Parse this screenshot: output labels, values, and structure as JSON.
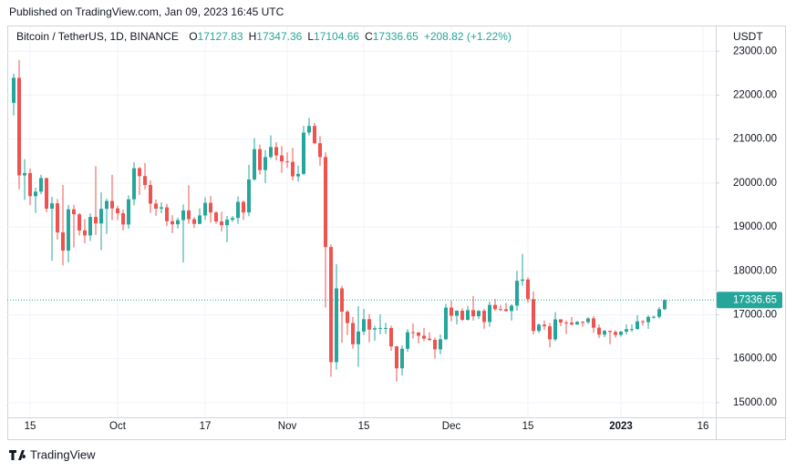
{
  "header": {
    "published": "Published on TradingView.com, Jan 09, 2023 16:45 UTC",
    "brand": "TradingView"
  },
  "chart_data": {
    "type": "candlestick",
    "title": "Bitcoin / TetherUS, 1D, BINANCE",
    "ohlc_labels": [
      "O",
      "H",
      "L",
      "C"
    ],
    "change_label": "+208.82 (+1.22%)",
    "y_axis_label": "USDT",
    "up_color": "#26a69a",
    "down_color": "#ef5350",
    "grid": true,
    "ylim": [
      14665,
      23565
    ],
    "yticks": [
      {
        "value": 15000,
        "label": "15000.00"
      },
      {
        "value": 16000,
        "label": "16000.00"
      },
      {
        "value": 17000,
        "label": "17000.00"
      },
      {
        "value": 18000,
        "label": "18000.00"
      },
      {
        "value": 19000,
        "label": "19000.00"
      },
      {
        "value": 20000,
        "label": "20000.00"
      },
      {
        "value": 21000,
        "label": "21000.00"
      },
      {
        "value": 22000,
        "label": "22000.00"
      },
      {
        "value": 23000,
        "label": "23000.00"
      }
    ],
    "categories": [
      null,
      null,
      null,
      "15",
      null,
      null,
      null,
      null,
      null,
      null,
      null,
      null,
      null,
      null,
      null,
      null,
      null,
      null,
      null,
      "Oct",
      null,
      null,
      null,
      null,
      null,
      null,
      null,
      null,
      null,
      null,
      null,
      null,
      null,
      null,
      null,
      "17",
      null,
      null,
      null,
      null,
      null,
      null,
      null,
      null,
      null,
      null,
      null,
      null,
      null,
      null,
      "Nov",
      null,
      null,
      null,
      null,
      null,
      null,
      null,
      null,
      null,
      null,
      null,
      null,
      null,
      "15",
      null,
      null,
      null,
      null,
      null,
      null,
      null,
      null,
      null,
      null,
      null,
      null,
      null,
      null,
      null,
      "Dec",
      null,
      null,
      null,
      null,
      null,
      null,
      null,
      null,
      null,
      null,
      null,
      null,
      null,
      "15",
      null,
      null,
      null,
      null,
      null,
      null,
      null,
      null,
      null,
      null,
      null,
      null,
      null,
      null,
      null,
      null,
      "2023",
      null,
      null,
      null,
      null,
      null,
      null,
      null,
      null,
      null,
      null,
      null,
      null,
      null,
      null,
      "16"
    ],
    "open": [
      21826,
      22395,
      20173,
      20226,
      19701,
      19803,
      20113,
      19416,
      19538,
      18875,
      18461,
      19401,
      19289,
      18920,
      18807,
      19227,
      19079,
      19412,
      19591,
      19423,
      19310,
      19056,
      19629,
      20337,
      20158,
      19955,
      19531,
      19417,
      19446,
      19131,
      19060,
      19155,
      19375,
      19176,
      19069,
      19262,
      19549,
      19328,
      19123,
      19041,
      19164,
      19204,
      19570,
      19329,
      20081,
      20771,
      20295,
      20591,
      20818,
      20627,
      20491,
      20482,
      20151,
      20208,
      21148,
      21299,
      20905,
      20591,
      18541,
      15922,
      17601,
      17070,
      16812,
      16329,
      16619,
      16900,
      16662,
      16693,
      16700,
      16700,
      16280,
      15781,
      16226,
      16603,
      16598,
      16522,
      16458,
      16428,
      16213,
      16442,
      17163,
      16977,
      17092,
      16885,
      17105,
      16966,
      17089,
      16836,
      17224,
      17128,
      17127,
      17085,
      17209,
      17774,
      17803,
      17356,
      16632,
      16776,
      16738,
      16439,
      16895,
      16824,
      16821,
      16778,
      16837,
      16832,
      16918,
      16706,
      16547,
      16633,
      16607,
      16542,
      16616,
      16672,
      16675,
      16850,
      16831,
      16951,
      16955,
      17127.83,
      null,
      null,
      null,
      null,
      null,
      null,
      null
    ],
    "high": [
      22488,
      22799,
      20541,
      20330,
      19890,
      20189,
      20113,
      19689,
      19634,
      19956,
      19500,
      19500,
      19316,
      19180,
      19310,
      20385,
      19790,
      19645,
      20185,
      19484,
      19395,
      19719,
      20475,
      20365,
      20456,
      20060,
      19622,
      19558,
      19525,
      19268,
      19214,
      19513,
      19951,
      19227,
      19424,
      19676,
      19706,
      19360,
      19347,
      19250,
      19250,
      19695,
      19601,
      20415,
      21021,
      20872,
      20750,
      21085,
      20930,
      20840,
      20700,
      20800,
      20393,
      21302,
      21480,
      21365,
      21069,
      20700,
      18600,
      18150,
      17660,
      17107,
      16950,
      17197,
      17134,
      17015,
      16751,
      17010,
      16820,
      16750,
      16290,
      16300,
      16676,
      16808,
      16600,
      16700,
      16600,
      16480,
      16550,
      17250,
      17320,
      17100,
      17150,
      17200,
      17425,
      17105,
      17139,
      17300,
      17360,
      17227,
      17270,
      17240,
      18000,
      18387,
      17850,
      17530,
      16800,
      16870,
      16815,
      17060,
      16900,
      16866,
      16950,
      16860,
      16860,
      16945,
      16970,
      16780,
      16660,
      16640,
      16650,
      16630,
      16780,
      16780,
      16990,
      16880,
      16990,
      16980,
      17176,
      17347.36,
      null,
      null,
      null,
      null,
      null,
      null,
      null
    ],
    "low": [
      21538,
      19860,
      19617,
      19497,
      19320,
      19748,
      19335,
      18232,
      18711,
      18125,
      18188,
      18531,
      18805,
      18629,
      18680,
      18816,
      18471,
      18843,
      19155,
      19160,
      18920,
      18959,
      19493,
      19730,
      19853,
      19320,
      19256,
      19313,
      19025,
      18860,
      18965,
      18190,
      19070,
      18975,
      19063,
      19160,
      19102,
      19070,
      18900,
      18650,
      19115,
      19070,
      19156,
      19243,
      20050,
      20190,
      20000,
      20552,
      20515,
      20232,
      20338,
      20060,
      20033,
      20180,
      21080,
      20880,
      20390,
      17166,
      15588,
      15754,
      16361,
      16538,
      16230,
      15815,
      16539,
      16377,
      16410,
      16556,
      16560,
      16180,
      15480,
      15620,
      16160,
      16459,
      16350,
      16400,
      16400,
      16000,
      16100,
      16420,
      16850,
      16780,
      16860,
      16870,
      16870,
      16900,
      16680,
      16730,
      17090,
      17090,
      17070,
      16870,
      17090,
      17660,
      17275,
      16550,
      16585,
      16660,
      16256,
      16396,
      16740,
      16560,
      16760,
      16767,
      16730,
      16788,
      16590,
      16470,
      16490,
      16330,
      16480,
      16500,
      16550,
      16610,
      16660,
      16755,
      16680,
      16910,
      16910,
      17104.66,
      null,
      null,
      null,
      null,
      null,
      null,
      null
    ],
    "close": [
      22395,
      20173,
      20226,
      19701,
      19803,
      20113,
      19416,
      19538,
      18875,
      18461,
      19401,
      19289,
      18920,
      18807,
      19227,
      19079,
      19412,
      19591,
      19423,
      19310,
      19056,
      19629,
      20337,
      20158,
      19955,
      19531,
      19417,
      19446,
      19131,
      19060,
      19155,
      19375,
      19176,
      19069,
      19262,
      19549,
      19328,
      19123,
      19041,
      19164,
      19204,
      19570,
      19329,
      20081,
      20771,
      20295,
      20591,
      20818,
      20627,
      20491,
      20482,
      20151,
      20208,
      21148,
      21299,
      20905,
      20591,
      18541,
      15922,
      17601,
      17070,
      16812,
      16329,
      16619,
      16900,
      16662,
      16693,
      16700,
      16700,
      16280,
      15781,
      16226,
      16603,
      16598,
      16522,
      16458,
      16428,
      16213,
      16442,
      17163,
      16977,
      17092,
      16885,
      17105,
      16966,
      17089,
      16836,
      17224,
      17128,
      17127,
      17085,
      17209,
      17774,
      17803,
      17356,
      16632,
      16776,
      16738,
      16439,
      16895,
      16824,
      16821,
      16778,
      16837,
      16832,
      16918,
      16706,
      16547,
      16633,
      16607,
      16542,
      16616,
      16672,
      16675,
      16850,
      16831,
      16951,
      16955,
      17127,
      17336.65,
      null,
      null,
      null,
      null,
      null,
      null,
      null
    ]
  }
}
